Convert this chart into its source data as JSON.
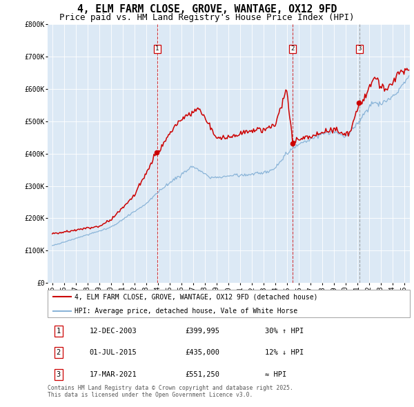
{
  "title": "4, ELM FARM CLOSE, GROVE, WANTAGE, OX12 9FD",
  "subtitle": "Price paid vs. HM Land Registry's House Price Index (HPI)",
  "red_line_label": "4, ELM FARM CLOSE, GROVE, WANTAGE, OX12 9FD (detached house)",
  "blue_line_label": "HPI: Average price, detached house, Vale of White Horse",
  "sale_events": [
    {
      "num": 1,
      "date": "12-DEC-2003",
      "price": "£399,995",
      "hpi_rel": "30% ↑ HPI",
      "x_year": 2003.95,
      "vline_style": "red_dashed"
    },
    {
      "num": 2,
      "date": "01-JUL-2015",
      "price": "£435,000",
      "hpi_rel": "12% ↓ HPI",
      "x_year": 2015.5,
      "vline_style": "red_dashed"
    },
    {
      "num": 3,
      "date": "17-MAR-2021",
      "price": "£551,250",
      "hpi_rel": "≈ HPI",
      "x_year": 2021.2,
      "vline_style": "gray_dashed"
    }
  ],
  "ylim": [
    0,
    800000
  ],
  "xlim_start": 1994.6,
  "xlim_end": 2025.5,
  "plot_bg_color": "#dce9f5",
  "red_color": "#cc0000",
  "blue_color": "#8ab4d8",
  "sale_dot_color": "#cc0000",
  "footer_text": "Contains HM Land Registry data © Crown copyright and database right 2025.\nThis data is licensed under the Open Government Licence v3.0.",
  "title_fontsize": 10.5,
  "subtitle_fontsize": 9,
  "tick_fontsize": 7,
  "legend_fontsize": 7.5,
  "table_fontsize": 7.5,
  "yticks": [
    0,
    100000,
    200000,
    300000,
    400000,
    500000,
    600000,
    700000,
    800000
  ],
  "xtick_years": [
    1995,
    1996,
    1997,
    1998,
    1999,
    2000,
    2001,
    2002,
    2003,
    2004,
    2005,
    2006,
    2007,
    2008,
    2009,
    2010,
    2011,
    2012,
    2013,
    2014,
    2015,
    2016,
    2017,
    2018,
    2019,
    2020,
    2021,
    2022,
    2023,
    2024,
    2025
  ]
}
